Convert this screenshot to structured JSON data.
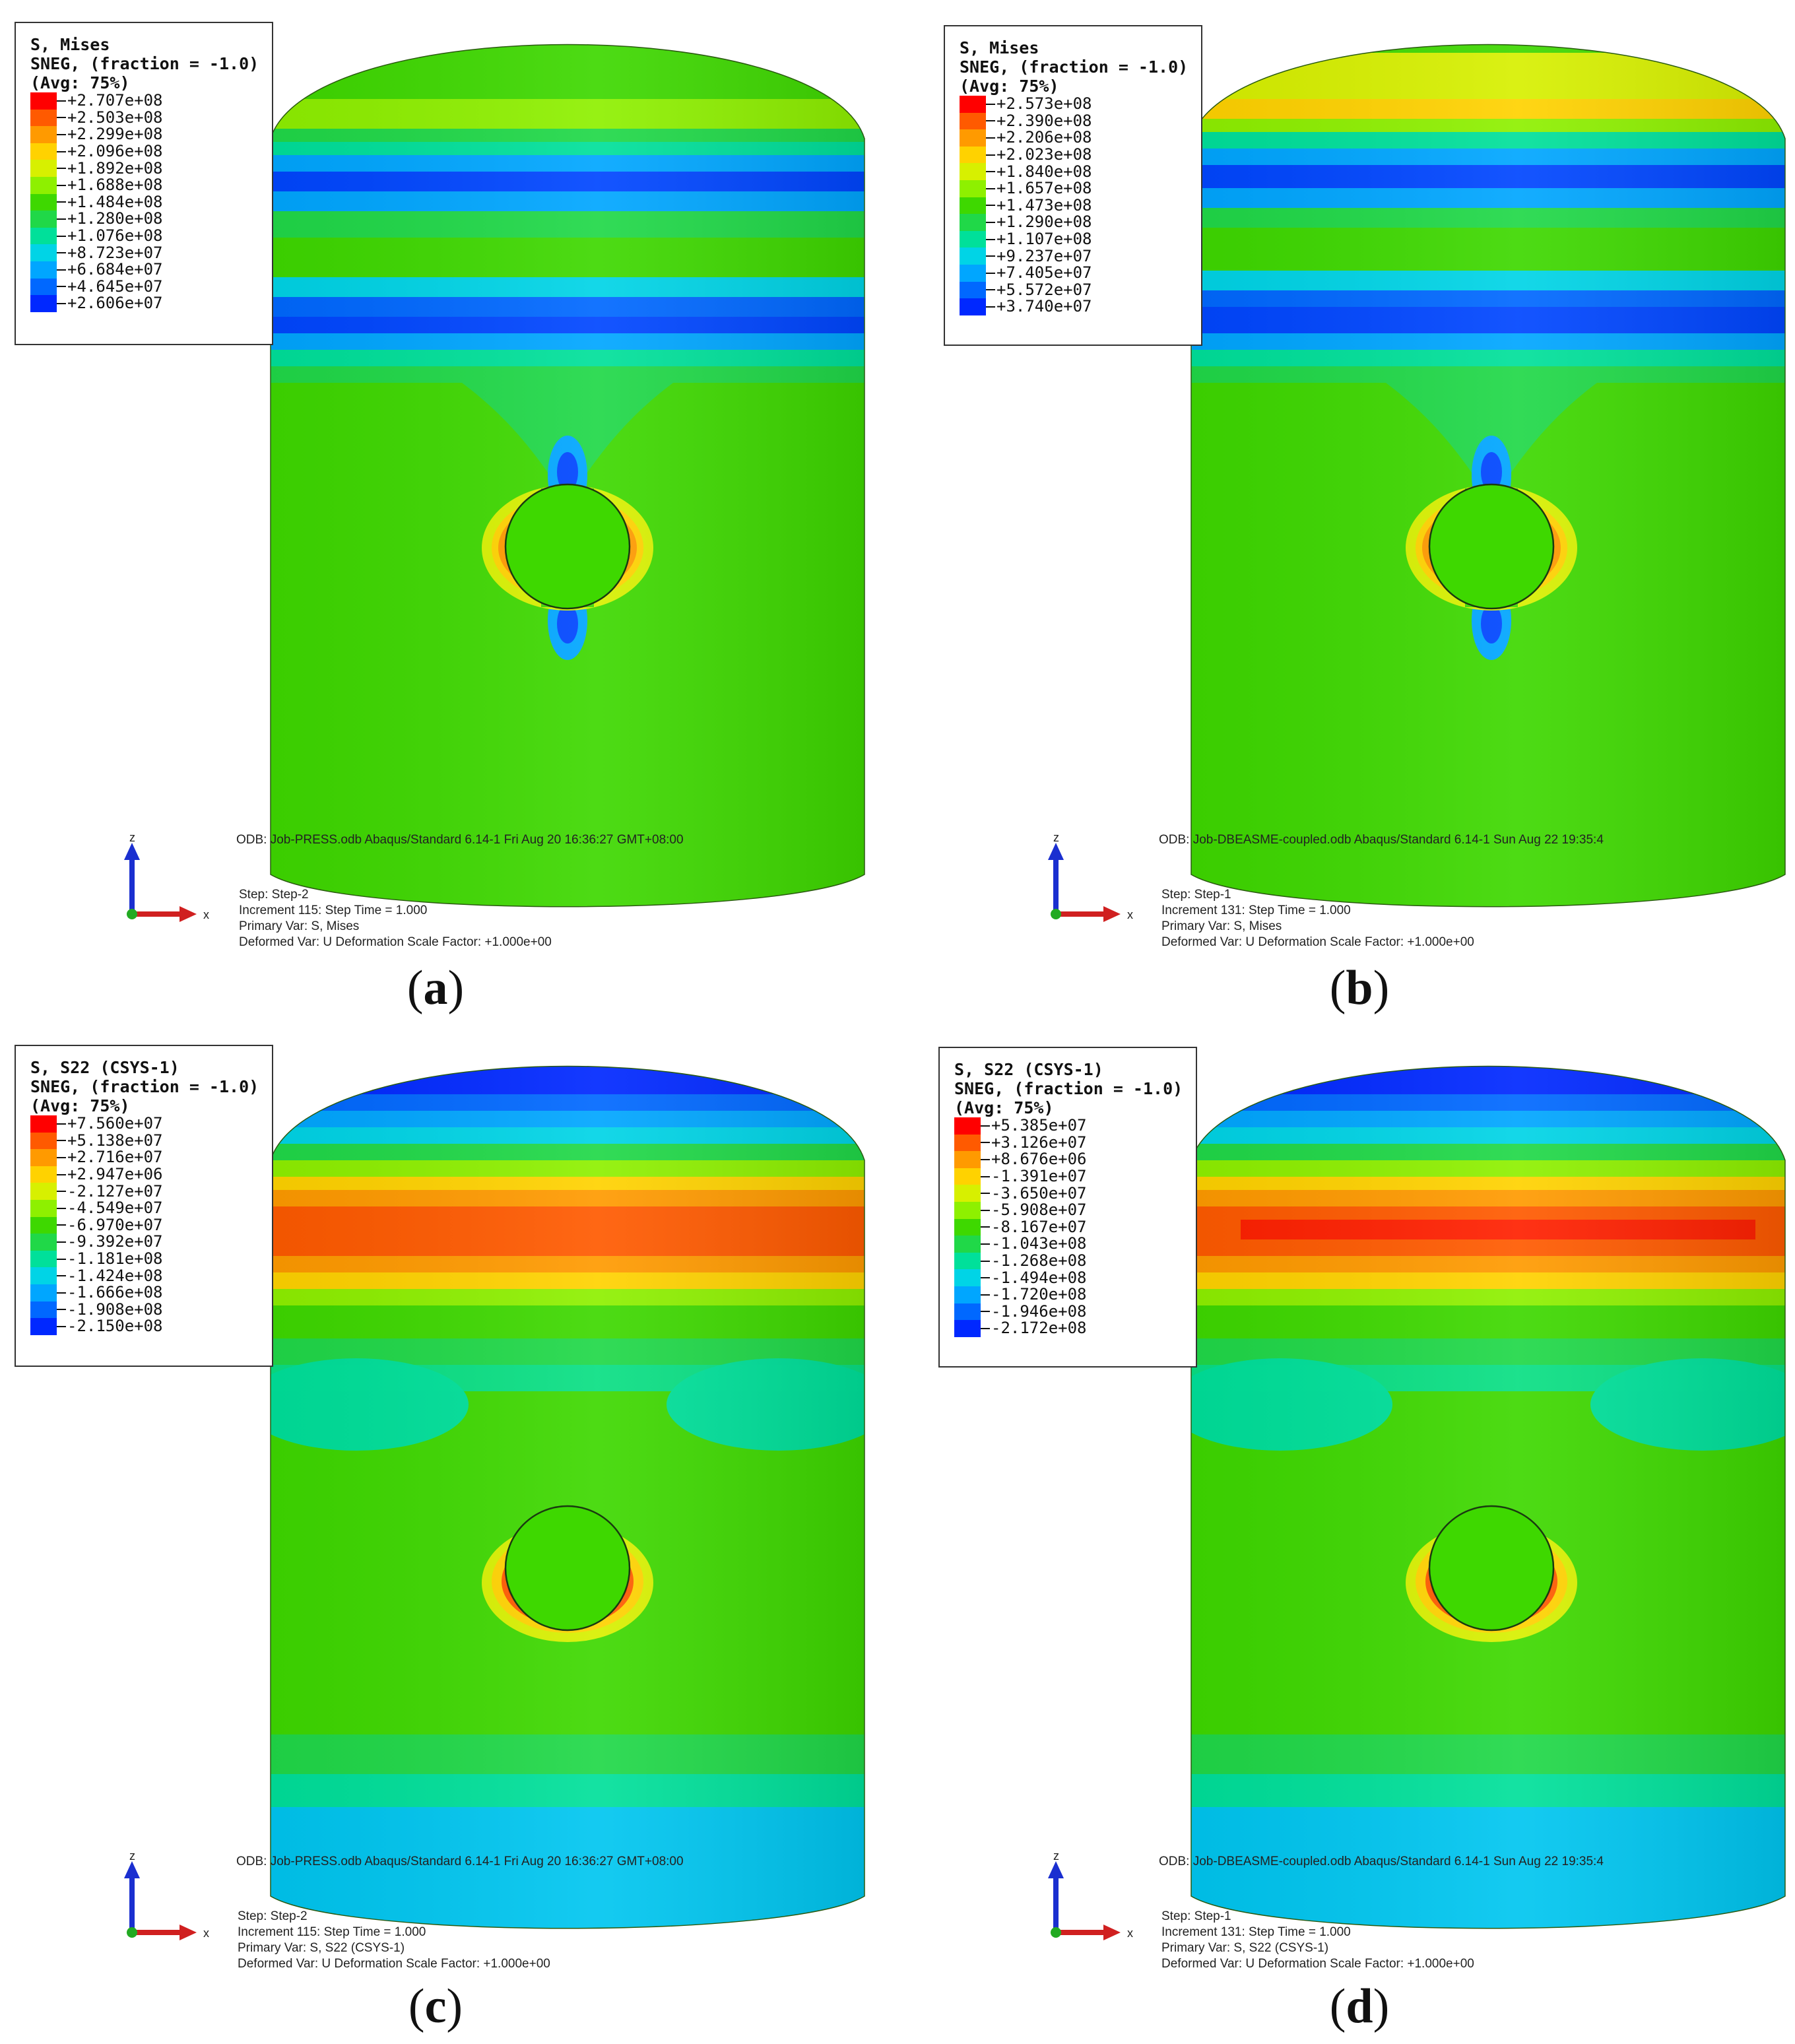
{
  "figure": {
    "panels": [
      {
        "id": "a",
        "label": "a",
        "legend": {
          "title_lines": [
            "S, Mises",
            "SNEG, (fraction = -1.0)",
            "(Avg: 75%)"
          ],
          "values": [
            "+2.707e+08",
            "+2.503e+08",
            "+2.299e+08",
            "+2.096e+08",
            "+1.892e+08",
            "+1.688e+08",
            "+1.484e+08",
            "+1.280e+08",
            "+1.076e+08",
            "+8.723e+07",
            "+6.684e+07",
            "+4.645e+07",
            "+2.606e+07"
          ]
        },
        "odb": "ODB: Job-PRESS.odb    Abaqus/Standard 6.14-1    Fri Aug 20 16:36:27 GMT+08:00",
        "step_lines": [
          "Step: Step-2",
          "Increment     115: Step Time =     1.000",
          "Primary Var: S, Mises",
          "Deformed Var: U   Deformation Scale Factor: +1.000e+00"
        ],
        "triad": {
          "z": "z",
          "x": "x"
        }
      },
      {
        "id": "b",
        "label": "b",
        "legend": {
          "title_lines": [
            "S, Mises",
            "SNEG, (fraction = -1.0)",
            "(Avg: 75%)"
          ],
          "values": [
            "+2.573e+08",
            "+2.390e+08",
            "+2.206e+08",
            "+2.023e+08",
            "+1.840e+08",
            "+1.657e+08",
            "+1.473e+08",
            "+1.290e+08",
            "+1.107e+08",
            "+9.237e+07",
            "+7.405e+07",
            "+5.572e+07",
            "+3.740e+07"
          ]
        },
        "odb": "ODB: Job-DBEASME-coupled.odb    Abaqus/Standard 6.14-1    Sun Aug 22 19:35:4",
        "step_lines": [
          "Step: Step-1",
          "Increment     131: Step Time =     1.000",
          "Primary Var: S, Mises",
          "Deformed Var: U   Deformation Scale Factor: +1.000e+00"
        ],
        "triad": {
          "z": "z",
          "x": "x"
        }
      },
      {
        "id": "c",
        "label": "c",
        "legend": {
          "title_lines": [
            "S, S22 (CSYS-1)",
            "SNEG, (fraction = -1.0)",
            "(Avg: 75%)"
          ],
          "values": [
            "+7.560e+07",
            "+5.138e+07",
            "+2.716e+07",
            "+2.947e+06",
            "-2.127e+07",
            "-4.549e+07",
            "-6.970e+07",
            "-9.392e+07",
            "-1.181e+08",
            "-1.424e+08",
            "-1.666e+08",
            "-1.908e+08",
            "-2.150e+08"
          ]
        },
        "odb": "ODB: Job-PRESS.odb    Abaqus/Standard 6.14-1    Fri Aug 20 16:36:27 GMT+08:00",
        "step_lines": [
          "Step: Step-2",
          "Increment     115: Step Time =     1.000",
          "Primary Var: S, S22 (CSYS-1)",
          "Deformed Var: U   Deformation Scale Factor: +1.000e+00"
        ],
        "triad": {
          "z": "z",
          "x": "x"
        }
      },
      {
        "id": "d",
        "label": "d",
        "legend": {
          "title_lines": [
            "S, S22 (CSYS-1)",
            "SNEG, (fraction = -1.0)",
            "(Avg: 75%)"
          ],
          "values": [
            "+5.385e+07",
            "+3.126e+07",
            "+8.676e+06",
            "-1.391e+07",
            "-3.650e+07",
            "-5.908e+07",
            "-8.167e+07",
            "-1.043e+08",
            "-1.268e+08",
            "-1.494e+08",
            "-1.720e+08",
            "-1.946e+08",
            "-2.172e+08"
          ]
        },
        "odb": "ODB: Job-DBEASME-coupled.odb    Abaqus/Standard 6.14-1    Sun Aug 22 19:35:4",
        "step_lines": [
          "Step: Step-1",
          "Increment     131: Step Time =     1.000",
          "Primary Var: S, S22 (CSYS-1)",
          "Deformed Var: U   Deformation Scale Factor: +1.000e+00"
        ],
        "triad": {
          "z": "z",
          "x": "x"
        }
      }
    ]
  },
  "colors": {
    "contour_scale": [
      "#ff0000",
      "#ff5a00",
      "#ff9a00",
      "#ffd200",
      "#d7f000",
      "#8ef000",
      "#3ed800",
      "#20d848",
      "#00e09a",
      "#00d4e6",
      "#00a6ff",
      "#0068ff",
      "#0028ff"
    ]
  }
}
